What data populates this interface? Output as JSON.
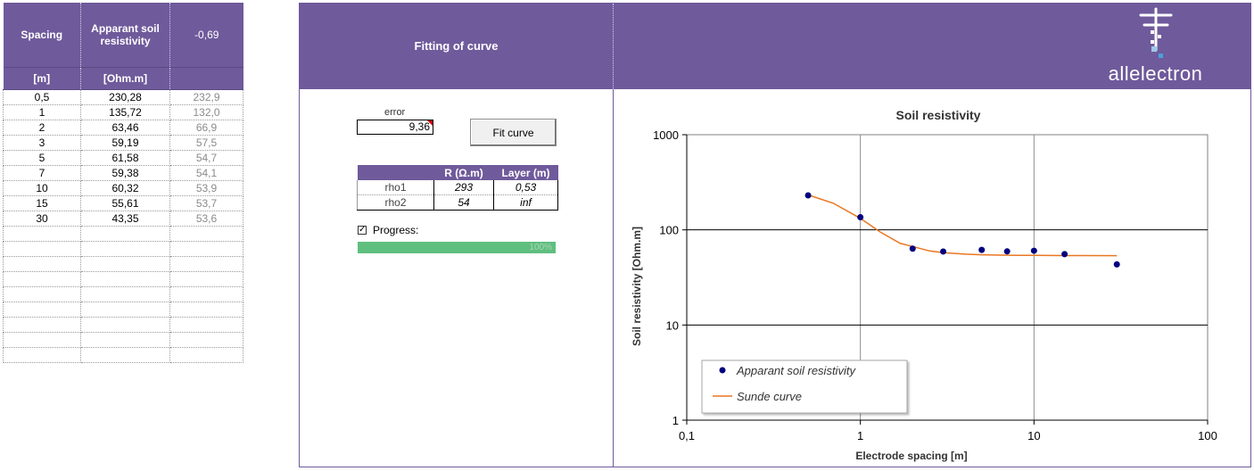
{
  "table": {
    "headers": {
      "spacing": "Spacing",
      "resistivity": "Apparant soil resistivity",
      "fit_error": "-0,69"
    },
    "units": {
      "spacing": "[m]",
      "resistivity": "[Ohm.m]",
      "fit": ""
    },
    "rows": [
      {
        "spacing": "0,5",
        "measured": "230,28",
        "fitted": "232,9"
      },
      {
        "spacing": "1",
        "measured": "135,72",
        "fitted": "132,0"
      },
      {
        "spacing": "2",
        "measured": "63,46",
        "fitted": "66,9"
      },
      {
        "spacing": "3",
        "measured": "59,19",
        "fitted": "57,5"
      },
      {
        "spacing": "5",
        "measured": "61,58",
        "fitted": "54,7"
      },
      {
        "spacing": "7",
        "measured": "59,38",
        "fitted": "54,1"
      },
      {
        "spacing": "10",
        "measured": "60,32",
        "fitted": "53,9"
      },
      {
        "spacing": "15",
        "measured": "55,61",
        "fitted": "53,7"
      },
      {
        "spacing": "30",
        "measured": "43,35",
        "fitted": "53,6"
      }
    ],
    "empty_rows": 9
  },
  "panel": {
    "title": "Fitting of curve",
    "logo_text": "allelectron",
    "error_label": "error",
    "error_value": "9,36",
    "fit_button": "Fit curve",
    "params": {
      "headers": [
        "",
        "R (Ω.m)",
        "Layer  (m)"
      ],
      "rows": [
        {
          "name": "rho1",
          "r": "293",
          "layer": "0,53"
        },
        {
          "name": "rho2",
          "r": "54",
          "layer": "inf"
        }
      ]
    },
    "progress": {
      "label": "Progress:",
      "checked": true,
      "fraction": 1.0,
      "text": "100%"
    }
  },
  "colors": {
    "purple": "#6f5a9b",
    "progress_green": "#5fbf7f",
    "marker": "#000080",
    "curve": "#e87722"
  },
  "chart_data": {
    "type": "scatter",
    "title": "Soil resistivity",
    "xlabel": "Electrode spacing [m]",
    "ylabel": "Soil resistivity [Ohm.m]",
    "xscale": "log",
    "yscale": "log",
    "xlim": [
      0.1,
      100
    ],
    "ylim": [
      1,
      1000
    ],
    "xticks": [
      0.1,
      1,
      10,
      100
    ],
    "xtick_labels": [
      "0,1",
      "1",
      "10",
      "100"
    ],
    "yticks": [
      1,
      10,
      100,
      1000
    ],
    "ytick_labels": [
      "1",
      "10",
      "100",
      "1000"
    ],
    "grid": true,
    "legend_position": "bottom-left",
    "series": [
      {
        "name": "Apparant soil resistivity",
        "kind": "markers",
        "x": [
          0.5,
          1,
          2,
          3,
          5,
          7,
          10,
          15,
          30
        ],
        "y": [
          230.28,
          135.72,
          63.46,
          59.19,
          61.58,
          59.38,
          60.32,
          55.61,
          43.35
        ]
      },
      {
        "name": "Sunde curve",
        "kind": "line",
        "x": [
          0.5,
          0.7,
          1,
          1.3,
          1.7,
          2,
          2.5,
          3,
          4,
          5,
          7,
          10,
          15,
          20,
          30
        ],
        "y": [
          232.9,
          190,
          132.0,
          95,
          72,
          66.9,
          60,
          57.5,
          55.5,
          54.7,
          54.1,
          53.9,
          53.7,
          53.65,
          53.6
        ]
      }
    ]
  }
}
